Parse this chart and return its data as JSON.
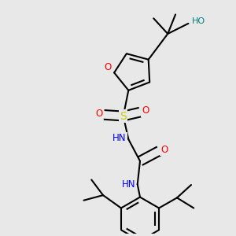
{
  "bg_color": "#e8e8e8",
  "atom_colors": {
    "O": "#ff0000",
    "N": "#0000ff",
    "S": "#cccc00",
    "HO": "#008080",
    "C": "#000000"
  },
  "bond_color": "#000000",
  "bond_width": 1.5
}
